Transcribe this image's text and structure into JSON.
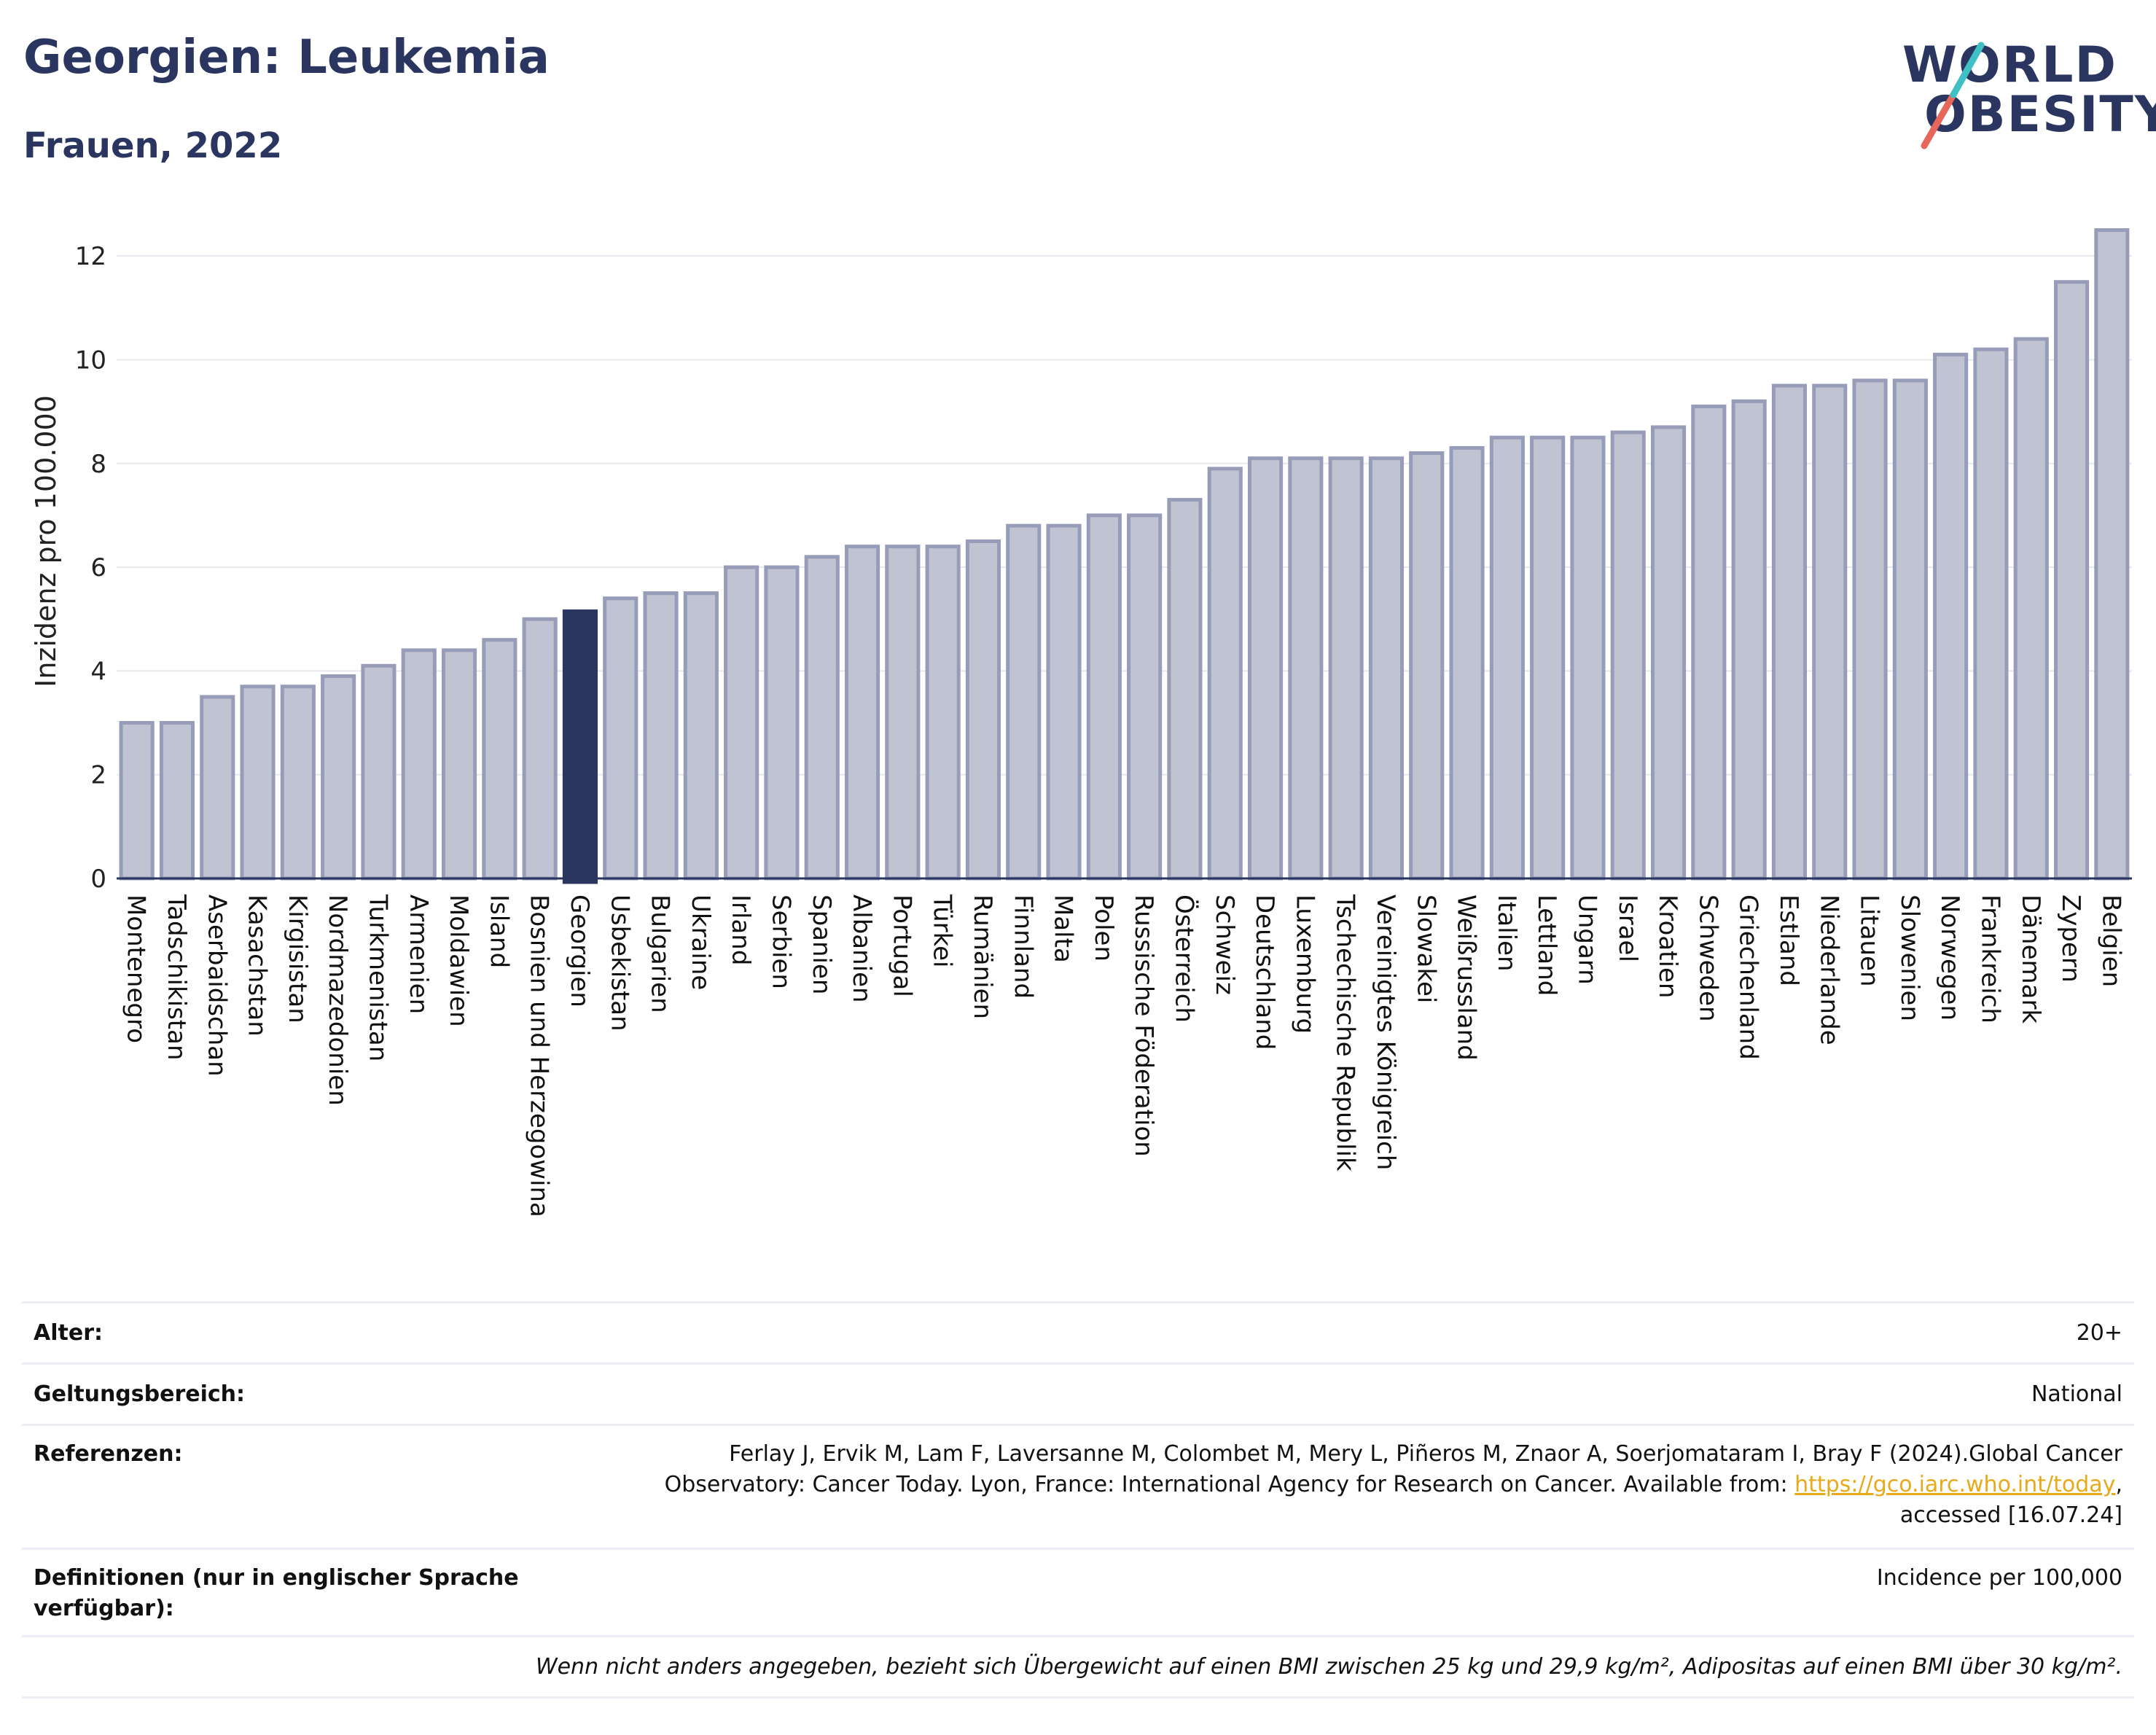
{
  "header": {
    "title": "Georgien: Leukemia",
    "subtitle": "Frauen, 2022"
  },
  "logo": {
    "line1": "WORLD",
    "line2": "OBESITY"
  },
  "colors": {
    "bar": "#bfc3d2",
    "bar_border": "#979db8",
    "highlight": "#2b3660",
    "title": "#2b3660",
    "link": "#e8a91b"
  },
  "chart_data": {
    "type": "bar",
    "ylabel": "Inzidenz pro 100.000",
    "xlabel": "",
    "ylim": [
      0,
      13
    ],
    "yticks": [
      0,
      2,
      4,
      6,
      8,
      10,
      12
    ],
    "grid": true,
    "highlight": "Georgien",
    "categories": [
      "Montenegro",
      "Tadschikistan",
      "Aserbaidschan",
      "Kasachstan",
      "Kirgisistan",
      "Nordmazedonien",
      "Turkmenistan",
      "Armenien",
      "Moldawien",
      "Island",
      "Bosnien und Herzegowina",
      "Georgien",
      "Usbekistan",
      "Bulgarien",
      "Ukraine",
      "Irland",
      "Serbien",
      "Spanien",
      "Albanien",
      "Portugal",
      "Türkei",
      "Rumänien",
      "Finnland",
      "Malta",
      "Polen",
      "Russische Föderation",
      "Österreich",
      "Schweiz",
      "Deutschland",
      "Luxemburg",
      "Tschechische Republik",
      "Vereinigtes Königreich",
      "Slowakei",
      "Weißrussland",
      "Italien",
      "Lettland",
      "Ungarn",
      "Israel",
      "Kroatien",
      "Schweden",
      "Griechenland",
      "Estland",
      "Niederlande",
      "Litauen",
      "Slowenien",
      "Norwegen",
      "Frankreich",
      "Dänemark",
      "Zypern",
      "Belgien"
    ],
    "values": [
      3.0,
      3.0,
      3.5,
      3.7,
      3.7,
      3.9,
      4.1,
      4.4,
      4.4,
      4.6,
      5.0,
      5.15,
      5.4,
      5.5,
      5.5,
      6.0,
      6.0,
      6.2,
      6.4,
      6.4,
      6.4,
      6.5,
      6.8,
      6.8,
      7.0,
      7.0,
      7.3,
      7.9,
      8.1,
      8.1,
      8.1,
      8.1,
      8.2,
      8.3,
      8.5,
      8.5,
      8.5,
      8.6,
      8.7,
      9.1,
      9.2,
      9.5,
      9.5,
      9.6,
      9.6,
      10.1,
      10.2,
      10.4,
      11.5,
      12.5
    ]
  },
  "info": {
    "age_label": "Alter:",
    "age_value": "20+",
    "scope_label": "Geltungsbereich:",
    "scope_value": "National",
    "ref_label": "Referenzen:",
    "ref_line1": "Ferlay J, Ervik M, Lam F, Laversanne M, Colombet M, Mery L, Piñeros M, Znaor A, Soerjomataram I, Bray F (2024).Global Cancer",
    "ref_line2_pre": "Observatory: Cancer Today. Lyon, France: International Agency for Research on Cancer. Available from: ",
    "ref_link": "https://gco.iarc.who.int/today",
    "ref_line2_post": ",",
    "ref_line3": "accessed [16.07.24]",
    "def_label": "Definitionen (nur in englischer Sprache verfügbar):",
    "def_value": "Incidence per 100,000",
    "note": "Wenn nicht anders angegeben, bezieht sich Übergewicht auf einen BMI zwischen 25 kg und 29,9 kg/m², Adipositas auf einen BMI über 30 kg/m²."
  }
}
